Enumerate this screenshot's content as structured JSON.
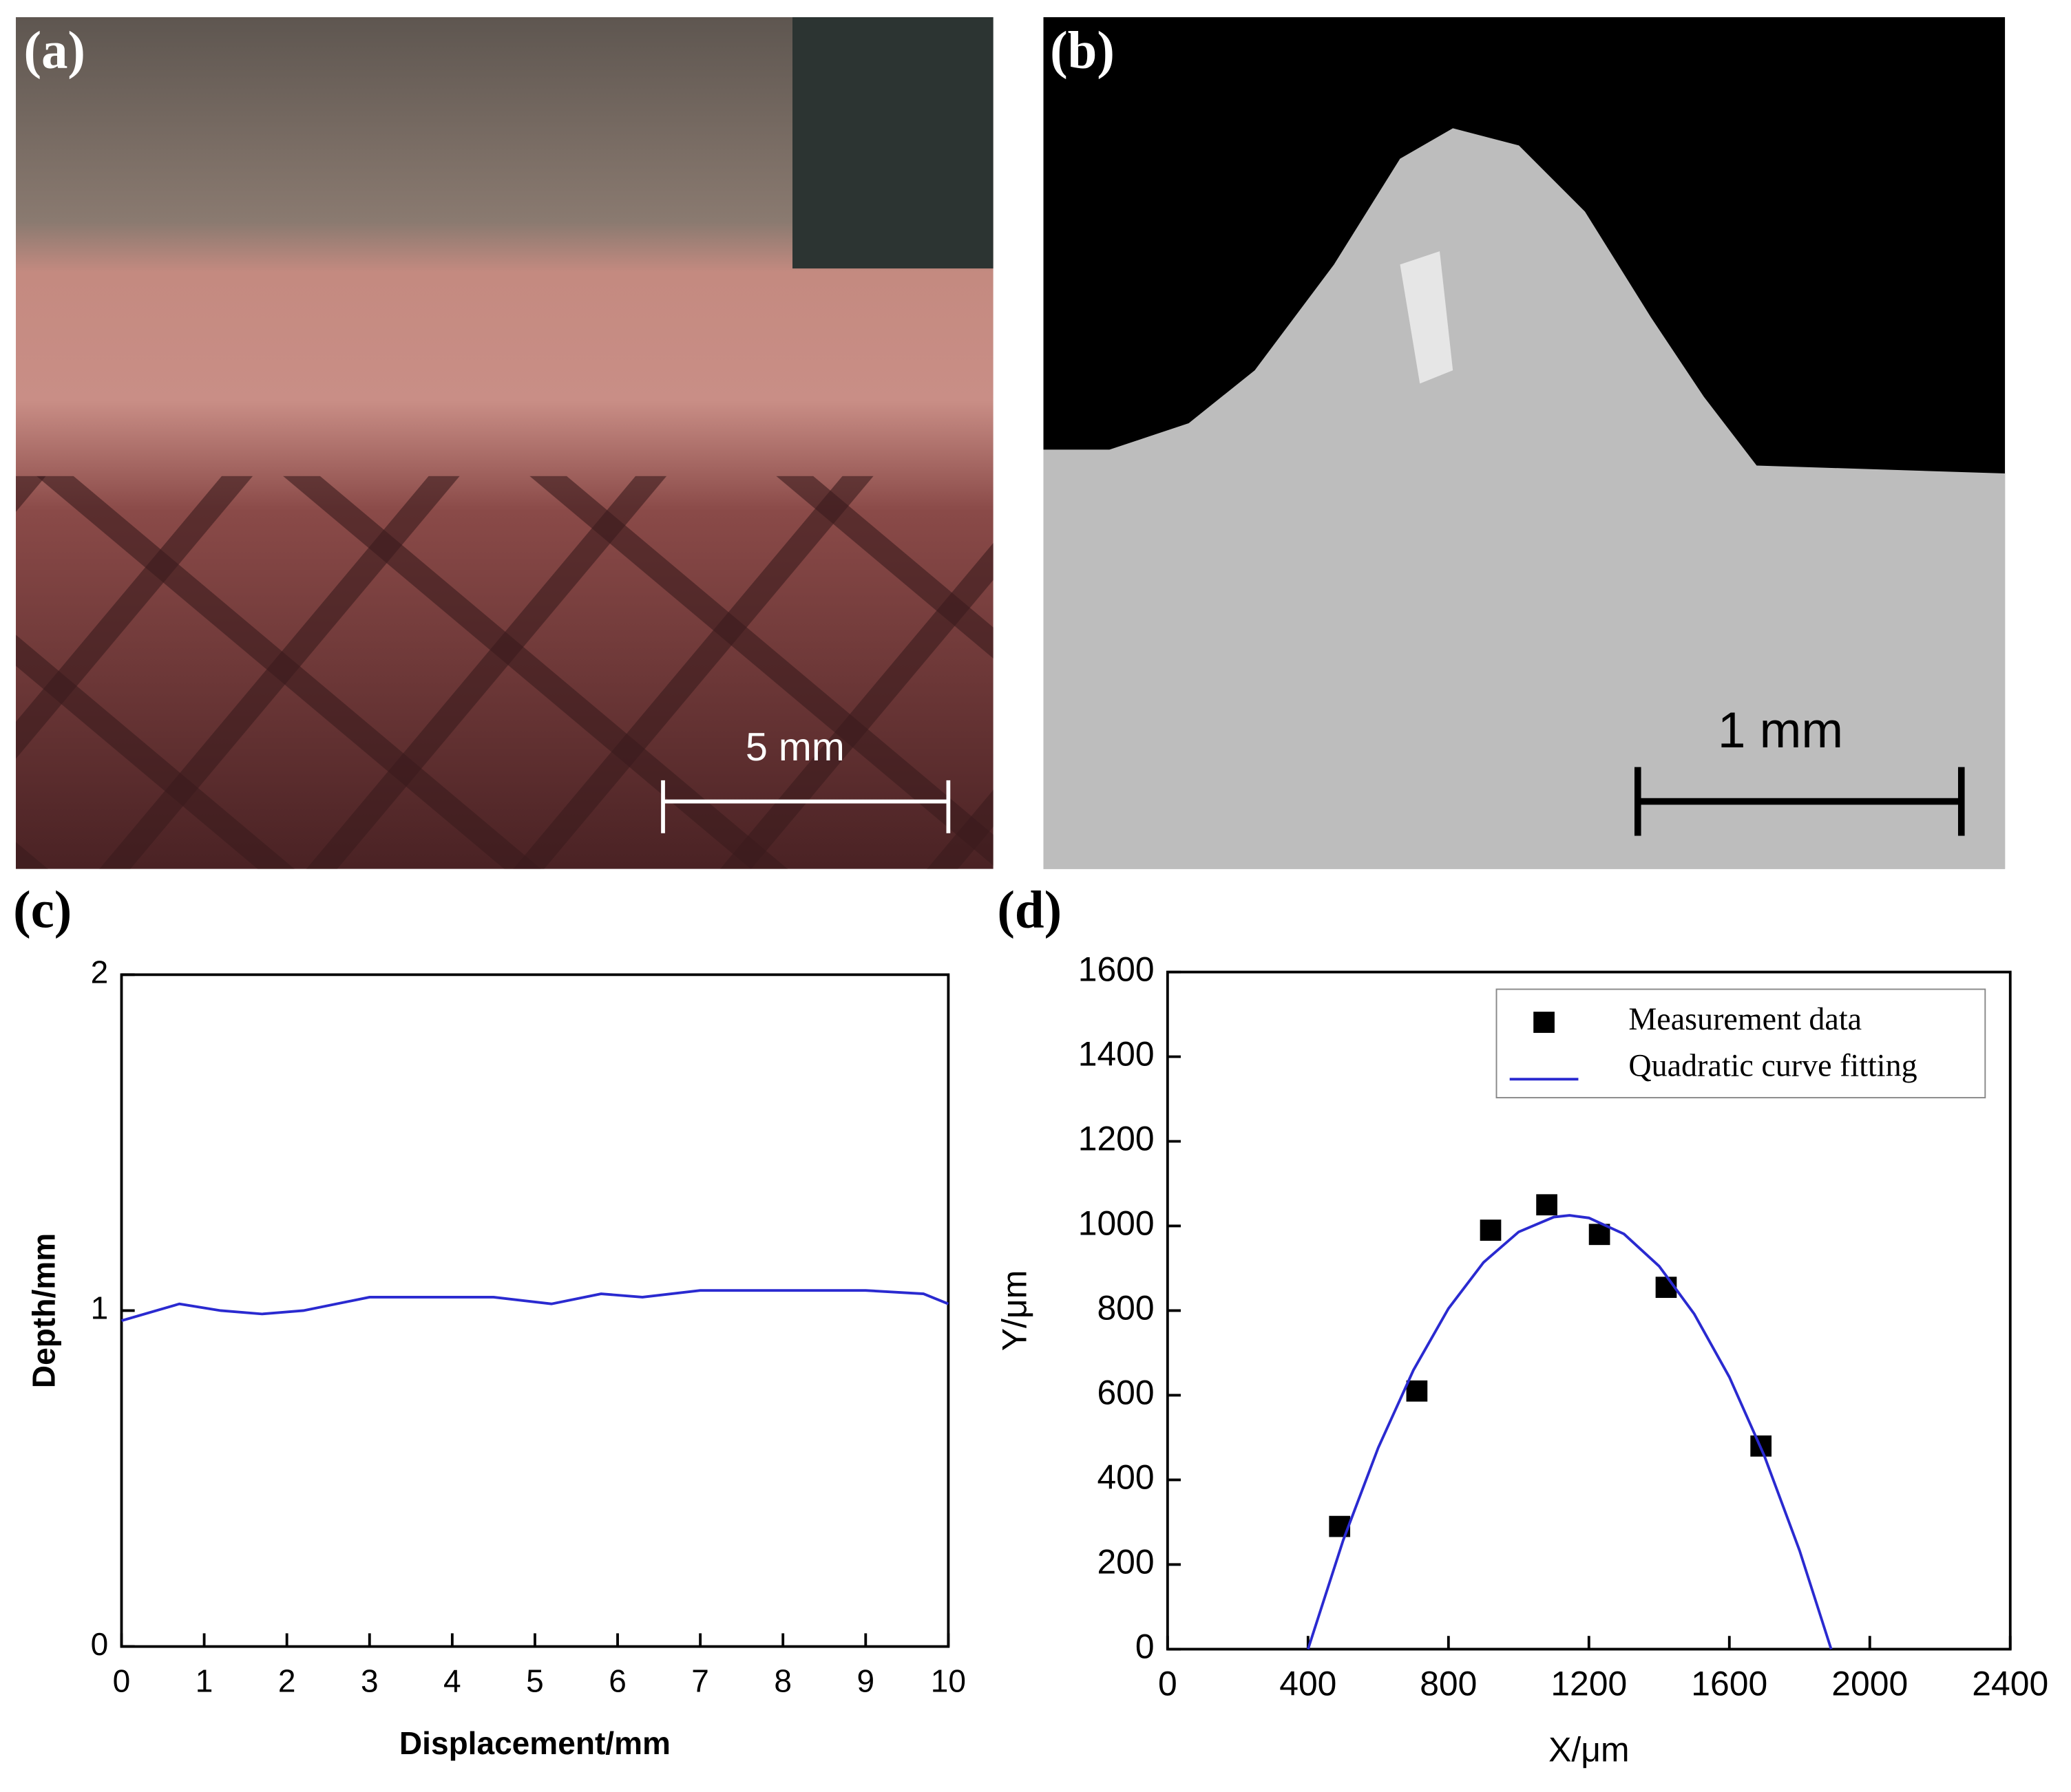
{
  "panels": [
    {
      "label": "(a)",
      "scale_bar": "5 mm"
    },
    {
      "label": "(b)",
      "scale_bar": "1 mm"
    },
    {
      "label": "(c)"
    },
    {
      "label": "(d)"
    }
  ],
  "chart_data": [
    {
      "type": "line",
      "xlabel": "Displacement/mm",
      "ylabel": "Depth/mm",
      "xlim": [
        0,
        10
      ],
      "xticks": [
        0,
        1,
        2,
        3,
        4,
        5,
        6,
        7,
        8,
        9,
        10
      ],
      "ylim": [
        0,
        2
      ],
      "yticks": [
        0,
        1,
        2
      ],
      "series": [
        {
          "color": "#2a2ad0",
          "x": [
            0,
            0.7,
            1.2,
            1.7,
            2.2,
            3,
            4.5,
            5.2,
            5.8,
            6.3,
            7,
            9,
            9.7,
            10
          ],
          "values": [
            0.97,
            1.02,
            1.0,
            0.99,
            1.0,
            1.04,
            1.04,
            1.02,
            1.05,
            1.04,
            1.06,
            1.06,
            1.05,
            1.02
          ]
        }
      ]
    },
    {
      "type": "scatter",
      "xlabel": "X/μm",
      "ylabel": "Y/μm",
      "xlim": [
        0,
        2400
      ],
      "xticks": [
        0,
        400,
        800,
        1200,
        1600,
        2000,
        2400
      ],
      "ylim": [
        0,
        1600
      ],
      "yticks": [
        0,
        200,
        400,
        600,
        800,
        1000,
        1200,
        1400,
        1600
      ],
      "series": [
        {
          "name": "Measurement data",
          "kind": "points",
          "color": "#000000",
          "x": [
            490,
            710,
            920,
            1080,
            1230,
            1420,
            1690
          ],
          "values": [
            290,
            610,
            990,
            1050,
            980,
            855,
            480
          ]
        },
        {
          "name": "Quadratic curve fitting",
          "kind": "line",
          "color": "#2a2ad0",
          "x": [
            400,
            500,
            600,
            700,
            800,
            900,
            1000,
            1100,
            1145,
            1200,
            1300,
            1400,
            1500,
            1600,
            1700,
            1800,
            1890
          ],
          "values": [
            0,
            257,
            476,
            659,
            805,
            914,
            986,
            1021,
            1025,
            1019,
            981,
            905,
            792,
            643,
            456,
            233,
            0
          ]
        }
      ]
    }
  ]
}
